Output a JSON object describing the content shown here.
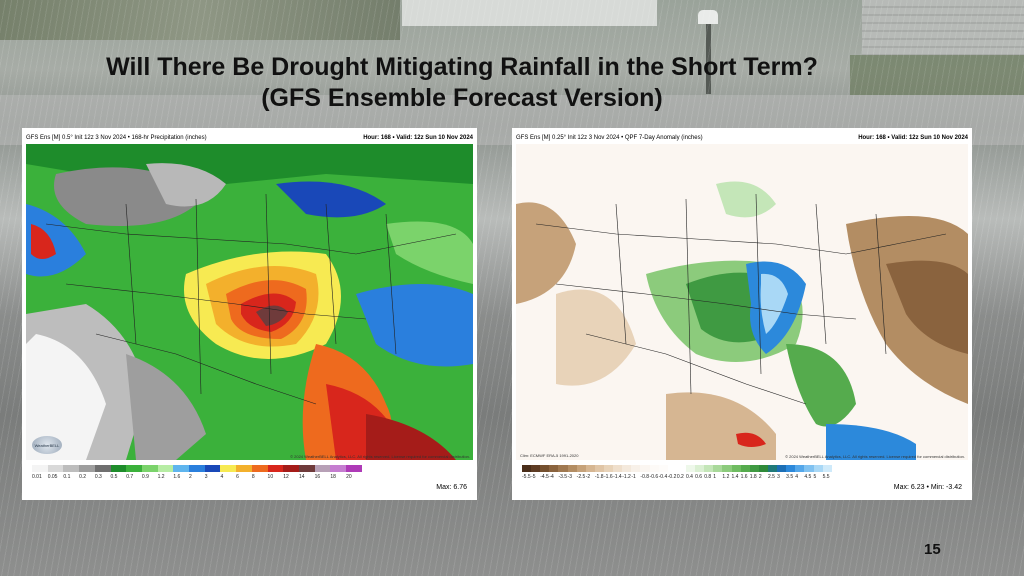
{
  "slide": {
    "title_line1": "Will There Be Drought Mitigating Rainfall in the Short Term?",
    "title_line2": "(GFS Ensemble Forecast Version)",
    "page_number": "15"
  },
  "left_map": {
    "header_left": "GFS Ens [M] 0.5° Init 12z 3 Nov 2024 • 168-hr Precipitation (inches)",
    "header_right": "Hour: 168 • Valid: 12z Sun 10 Nov 2024",
    "logo_text": "WeatherBELL",
    "credit": "© 2024 WeatherBELL Analytics, LLC. All rights reserved. License required for commercial distribution.",
    "scale_ticks": [
      "0.01",
      "0.05",
      "0.1",
      "0.2",
      "0.3",
      "0.5",
      "0.7",
      "0.9",
      "1.2",
      "1.6",
      "2",
      "3",
      "4",
      "6",
      "8",
      "10",
      "12",
      "14",
      "16",
      "18",
      "20"
    ],
    "scale_colors": [
      "#f4f4f4",
      "#d9d9d9",
      "#bdbdbd",
      "#9e9e9e",
      "#6f6f6f",
      "#1e8c2b",
      "#3bb13b",
      "#7bd36b",
      "#b7eda4",
      "#5fb5ee",
      "#2a7fdd",
      "#1948b8",
      "#f7ea52",
      "#f3b02c",
      "#ee6a1e",
      "#d8261c",
      "#a51c19",
      "#6f3b3b",
      "#b7a0b6",
      "#c57dd0",
      "#ae3ab7"
    ],
    "max_label": "Max: 6.76"
  },
  "right_map": {
    "header_left": "GFS Ens [M] 0.25° Init 12z 3 Nov 2024 • QPF 7-Day Anomaly (inches)",
    "header_right": "Hour: 168 • Valid: 12z Sun 10 Nov 2024",
    "source": "Clim: ECMWF ERA-5 1991-2020",
    "credit": "© 2024 WeatherBELL Analytics, LLC. All rights reserved. License required for commercial distribution.",
    "scale_ticks": [
      "-5.5",
      "-5",
      "-4.5",
      "-4",
      "-3.5",
      "-3",
      "-2.5",
      "-2",
      "-1.8",
      "-1.6",
      "-1.4",
      "-1.2",
      "-1",
      "-0.8",
      "-0.6",
      "-0.4",
      "-0.2",
      "0.2",
      "0.4",
      "0.6",
      "0.8",
      "1",
      "1.2",
      "1.4",
      "1.6",
      "1.8",
      "2",
      "2.5",
      "3",
      "3.5",
      "4",
      "4.5",
      "5",
      "5.5"
    ],
    "scale_colors": [
      "#4a2e1a",
      "#5e3c24",
      "#74502f",
      "#8a633e",
      "#9f7850",
      "#b38d63",
      "#c6a27a",
      "#d6b692",
      "#e0c5a6",
      "#e8d3b9",
      "#efdfcc",
      "#f4e9dc",
      "#f8f1e9",
      "#fbf6f1",
      "#fdfaf7",
      "#fefcfa",
      "#ffffff",
      "#ffffff",
      "#eef8ea",
      "#dbf0d3",
      "#c4e6b8",
      "#a9d99a",
      "#8ccb7c",
      "#6fbc61",
      "#55ab4d",
      "#3f9a42",
      "#2f8a3a",
      "#1f7a7a",
      "#1c6fb6",
      "#2c89db",
      "#54a7ea",
      "#80c2f1",
      "#a9d8f6",
      "#cfeafa"
    ],
    "max_label": "Max: 6.23 • Min: -3.42"
  }
}
